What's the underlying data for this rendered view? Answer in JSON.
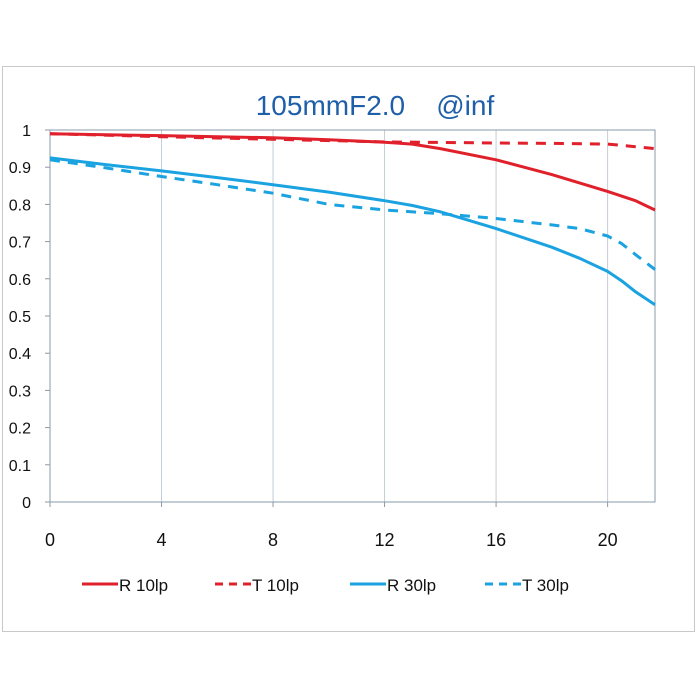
{
  "chart_data": {
    "type": "line",
    "title": "105mmF2.0    @inf",
    "xlabel": "",
    "ylabel": "",
    "xlim": [
      0,
      21.7
    ],
    "ylim": [
      0,
      1
    ],
    "xticks": [
      "0",
      "4",
      "8",
      "12",
      "16",
      "20"
    ],
    "xtick_values": [
      0,
      4,
      8,
      12,
      16,
      20
    ],
    "yticks": [
      "0",
      "0.1",
      "0.2",
      "0.3",
      "0.4",
      "0.5",
      "0.6",
      "0.7",
      "0.8",
      "0.9",
      "1"
    ],
    "ytick_values": [
      0,
      0.1,
      0.2,
      0.3,
      0.4,
      0.5,
      0.6,
      0.7,
      0.8,
      0.9,
      1
    ],
    "grid": "vertical",
    "legend_position": "bottom",
    "series": [
      {
        "name": "R 10lp",
        "color": "#e0202a",
        "style": "solid",
        "x": [
          0,
          2,
          4,
          6,
          8,
          10,
          12,
          13,
          14,
          16,
          18,
          20,
          21,
          21.7
        ],
        "y": [
          0.99,
          0.987,
          0.985,
          0.982,
          0.979,
          0.974,
          0.967,
          0.962,
          0.95,
          0.92,
          0.88,
          0.835,
          0.81,
          0.785
        ]
      },
      {
        "name": "T 10lp",
        "color": "#e0202a",
        "style": "dashed",
        "x": [
          0,
          4,
          8,
          12,
          16,
          18,
          20,
          21,
          21.7
        ],
        "y": [
          0.99,
          0.982,
          0.975,
          0.968,
          0.965,
          0.964,
          0.962,
          0.955,
          0.95
        ]
      },
      {
        "name": "R 30lp",
        "color": "#1aa3e0",
        "style": "solid",
        "x": [
          0,
          2,
          4,
          6,
          8,
          10,
          12,
          13,
          14,
          16,
          18,
          19,
          20,
          20.5,
          21,
          21.7
        ],
        "y": [
          0.925,
          0.907,
          0.89,
          0.872,
          0.853,
          0.833,
          0.81,
          0.797,
          0.78,
          0.735,
          0.685,
          0.655,
          0.62,
          0.595,
          0.565,
          0.53
        ]
      },
      {
        "name": "T 30lp",
        "color": "#1aa3e0",
        "style": "dashed",
        "x": [
          0,
          2,
          4,
          6,
          8,
          10,
          12,
          14,
          16,
          18,
          19,
          20,
          20.5,
          21,
          21.7
        ],
        "y": [
          0.92,
          0.898,
          0.875,
          0.853,
          0.83,
          0.8,
          0.785,
          0.775,
          0.762,
          0.745,
          0.735,
          0.715,
          0.695,
          0.665,
          0.625
        ]
      }
    ]
  }
}
